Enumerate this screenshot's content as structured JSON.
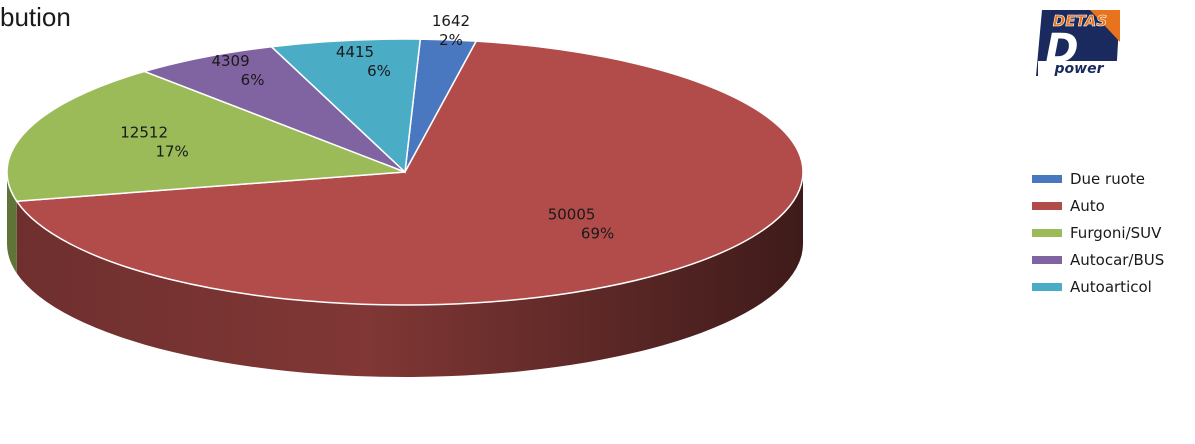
{
  "chart_data": {
    "type": "pie",
    "title": "bution",
    "series": [
      {
        "name": "Due ruote",
        "value": 1642,
        "percent": "2%",
        "color": "#4a78c0"
      },
      {
        "name": "Auto",
        "value": 50005,
        "percent": "69%",
        "color": "#b24c4a"
      },
      {
        "name": "Furgoni/SUV",
        "value": 12512,
        "percent": "17%",
        "color": "#9bbb59"
      },
      {
        "name": "Autocar/BUS",
        "value": 4309,
        "percent": "6%",
        "color": "#8064a2"
      },
      {
        "name": "Autoarticol",
        "value": 4415,
        "percent": "6%",
        "color": "#4bacc6"
      }
    ],
    "legend_position": "right",
    "three_d": true
  },
  "logo": {
    "top_text": "DETAS",
    "letter": "D",
    "bottom_text": "power"
  }
}
